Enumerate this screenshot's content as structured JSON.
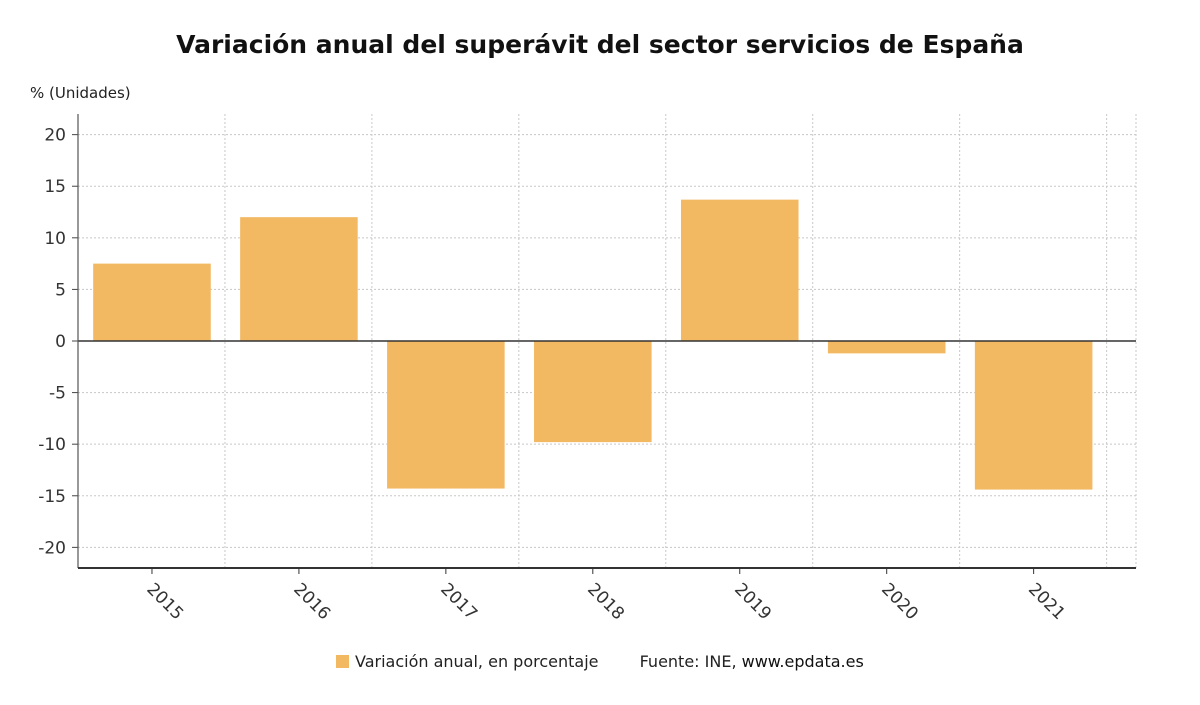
{
  "chart_data": {
    "type": "bar",
    "title": "Variación anual del superávit del sector servicios de España",
    "ylabel": "% (Unidades)",
    "categories": [
      "2015",
      "2016",
      "2017",
      "2018",
      "2019",
      "2020",
      "2021"
    ],
    "series": [
      {
        "name": "Variación anual, en porcentaje",
        "values": [
          7.5,
          12.0,
          -14.3,
          -9.8,
          13.7,
          -1.2,
          -14.4
        ],
        "color": "#f2b862"
      }
    ],
    "ylim": [
      -22,
      22
    ],
    "yticks": [
      "20",
      "15",
      "10",
      "5",
      "0",
      "-5",
      "-10",
      "-15",
      "-20"
    ],
    "grid": true,
    "legend_position": "bottom"
  },
  "legend": {
    "series_label": "Variación anual, en porcentaje",
    "source_prefix": "Fuente: INE, ",
    "source_link": "www.epdata.es"
  }
}
